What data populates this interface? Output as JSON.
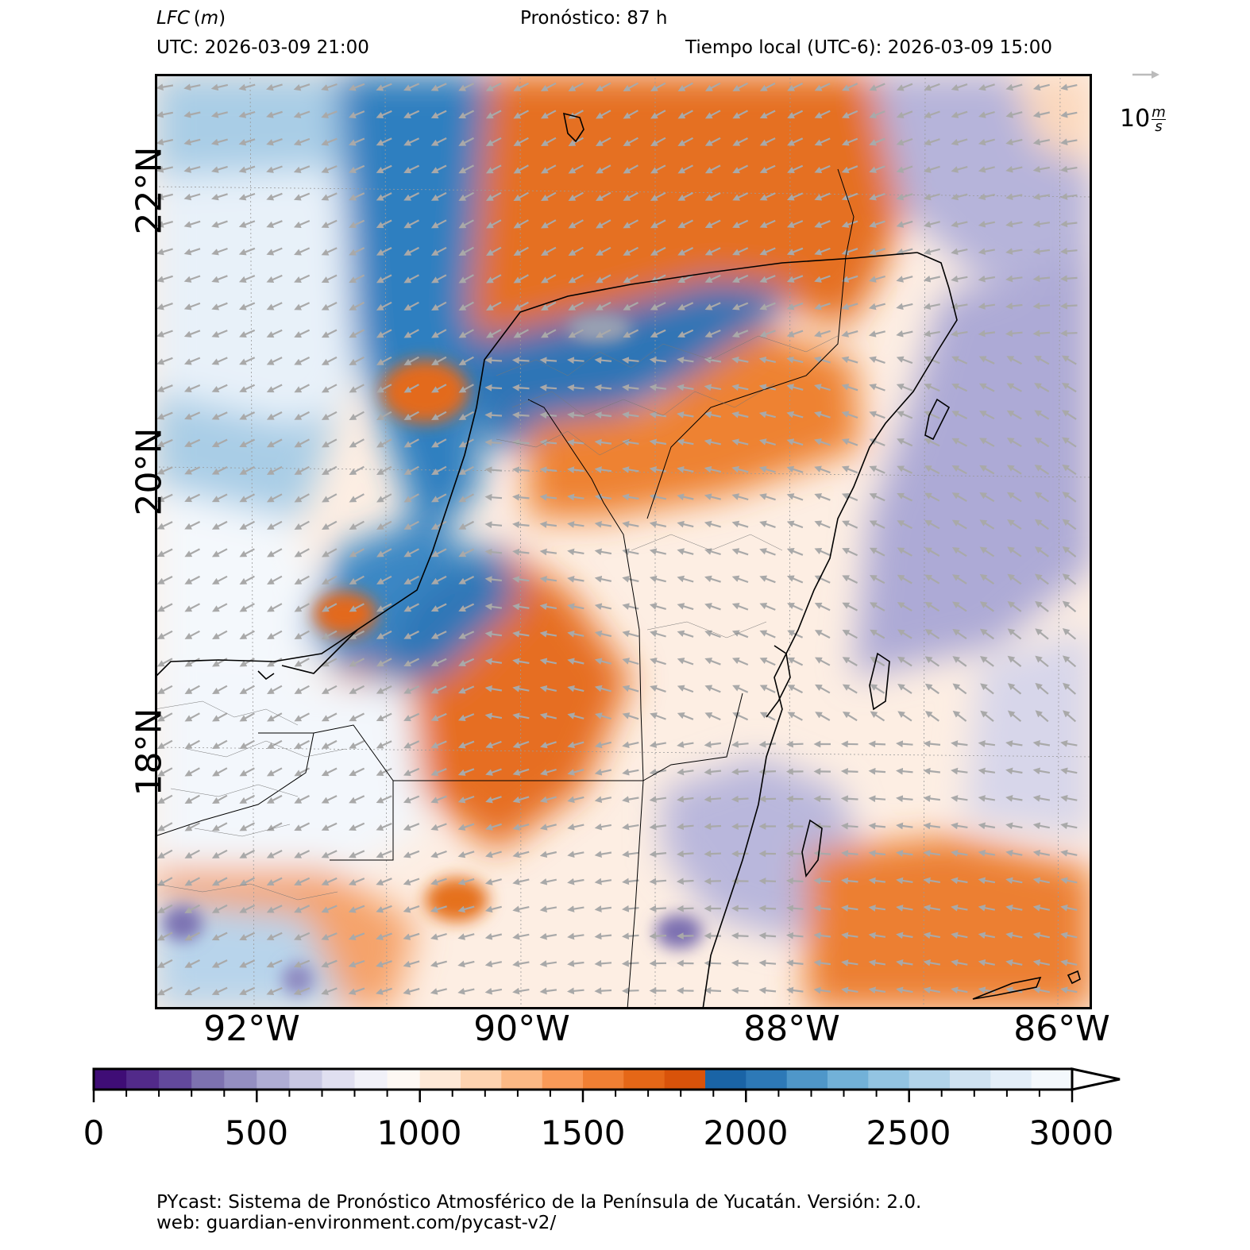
{
  "header": {
    "variable": "LFC",
    "unit": "m",
    "forecast": "Pronóstico: 87 h",
    "utc": "UTC:  2026-03-09 21:00",
    "local": "Tiempo local (UTC-6): 2026-03-09 15:00"
  },
  "wind_key": {
    "value": "10",
    "unit_num": "m",
    "unit_den": "s"
  },
  "map": {
    "lon_labels": [
      "92°W",
      "90°W",
      "88°W",
      "86°W"
    ],
    "lat_labels": [
      "22°N",
      "20°N",
      "18°N"
    ],
    "lon_range": [
      -92.7,
      -85.8
    ],
    "lat_range": [
      16.0,
      22.6
    ]
  },
  "colorbar": {
    "min": 0,
    "max": 3000,
    "step": 100,
    "tick_labels": [
      "0",
      "500",
      "1000",
      "1500",
      "2000",
      "2500",
      "3000"
    ],
    "extend": "max",
    "colors": [
      "#3f0d76",
      "#522a8a",
      "#63499c",
      "#7d72b0",
      "#948fc2",
      "#afadd4",
      "#c9c8e3",
      "#e0dff0",
      "#f1f1f8",
      "#fdf8f3",
      "#fde8d6",
      "#fdd3b0",
      "#fcb985",
      "#f99a58",
      "#f07f33",
      "#e56717",
      "#d9530a",
      "#1a64a6",
      "#2d79b7",
      "#4f97c9",
      "#72b1d8",
      "#93c4e2",
      "#b2d4ea",
      "#cfe2f1",
      "#e3eef8",
      "#f3f8fc"
    ]
  },
  "footer": {
    "line1": "PYcast: Sistema de Pronóstico Atmosférico de la Península de Yucatán. Versión: 2.0.",
    "line2": "web: guardian-environment.com/pycast-v2/"
  }
}
